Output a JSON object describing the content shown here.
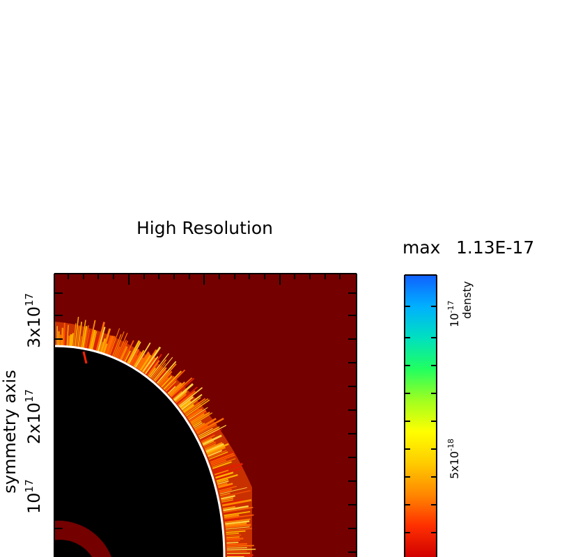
{
  "chart_data": {
    "type": "heatmap",
    "title": "High Resolution",
    "ylabel": "symmetry axis",
    "yticks": [
      {
        "base": "10",
        "exp": "17",
        "value": 1e+17
      },
      {
        "base": "2x10",
        "exp": "17",
        "value": 2e+17
      },
      {
        "base": "3x10",
        "exp": "17",
        "value": 3e+17
      }
    ],
    "colorbar": {
      "label": "densty",
      "max_label": "max",
      "max_value": "1.13E-17",
      "ticks": [
        {
          "base": "5x10",
          "exp": "-18",
          "value": 5e-18
        },
        {
          "base": "10",
          "exp": "-17",
          "value": 1e-17
        }
      ],
      "colors": [
        "#d00000",
        "#ff3000",
        "#ff8800",
        "#ffcc00",
        "#ffff00",
        "#a0ff20",
        "#20ff60",
        "#00e0c0",
        "#00b0ff",
        "#1060ff"
      ]
    },
    "background_color": "#740000",
    "interior_color": "#000000",
    "contour_color": "#ffffff",
    "grid": false
  }
}
